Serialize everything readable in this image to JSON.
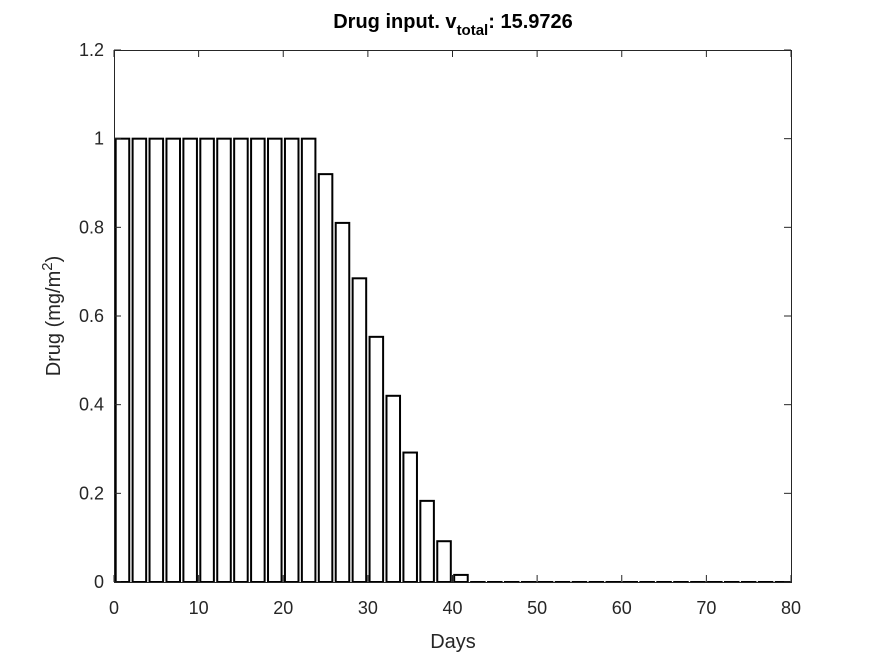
{
  "chart_data": {
    "type": "bar",
    "title": {
      "prefix": "Drug input. v",
      "subscript": "total",
      "suffix": ": 15.9726"
    },
    "xlabel": "Days",
    "ylabel": {
      "text": "Drug (mg/m",
      "superscript": "2",
      "close": ")"
    },
    "xlim": [
      0,
      80
    ],
    "ylim": [
      0,
      1.2
    ],
    "xticks": [
      0,
      10,
      20,
      30,
      40,
      50,
      60,
      70,
      80
    ],
    "xtick_labels": [
      "0",
      "10",
      "20",
      "30",
      "40",
      "50",
      "60",
      "70",
      "80"
    ],
    "yticks": [
      0,
      0.2,
      0.4,
      0.6,
      0.8,
      1.0,
      1.2
    ],
    "ytick_labels": [
      "0",
      "0.2",
      "0.4",
      "0.6",
      "0.8",
      "1",
      "1.2"
    ],
    "grid": false,
    "bar_fill": "#ffffff",
    "bar_edge": "#000000",
    "x": [
      1,
      3,
      5,
      7,
      9,
      11,
      13,
      15,
      17,
      19,
      21,
      23,
      25,
      27,
      29,
      31,
      33,
      35,
      37,
      39,
      41,
      43,
      45,
      47,
      49,
      51,
      53,
      55,
      57,
      59,
      61,
      63,
      65,
      67,
      69,
      71,
      73,
      75,
      77,
      79
    ],
    "values": [
      1,
      1,
      1,
      1,
      1,
      1,
      1,
      1,
      1,
      1,
      1,
      1,
      0.92,
      0.81,
      0.685,
      0.553,
      0.42,
      0.292,
      0.183,
      0.092,
      0.016,
      0,
      0,
      0,
      0,
      0,
      0,
      0,
      0,
      0,
      0,
      0,
      0,
      0,
      0,
      0,
      0,
      0,
      0,
      0
    ]
  }
}
